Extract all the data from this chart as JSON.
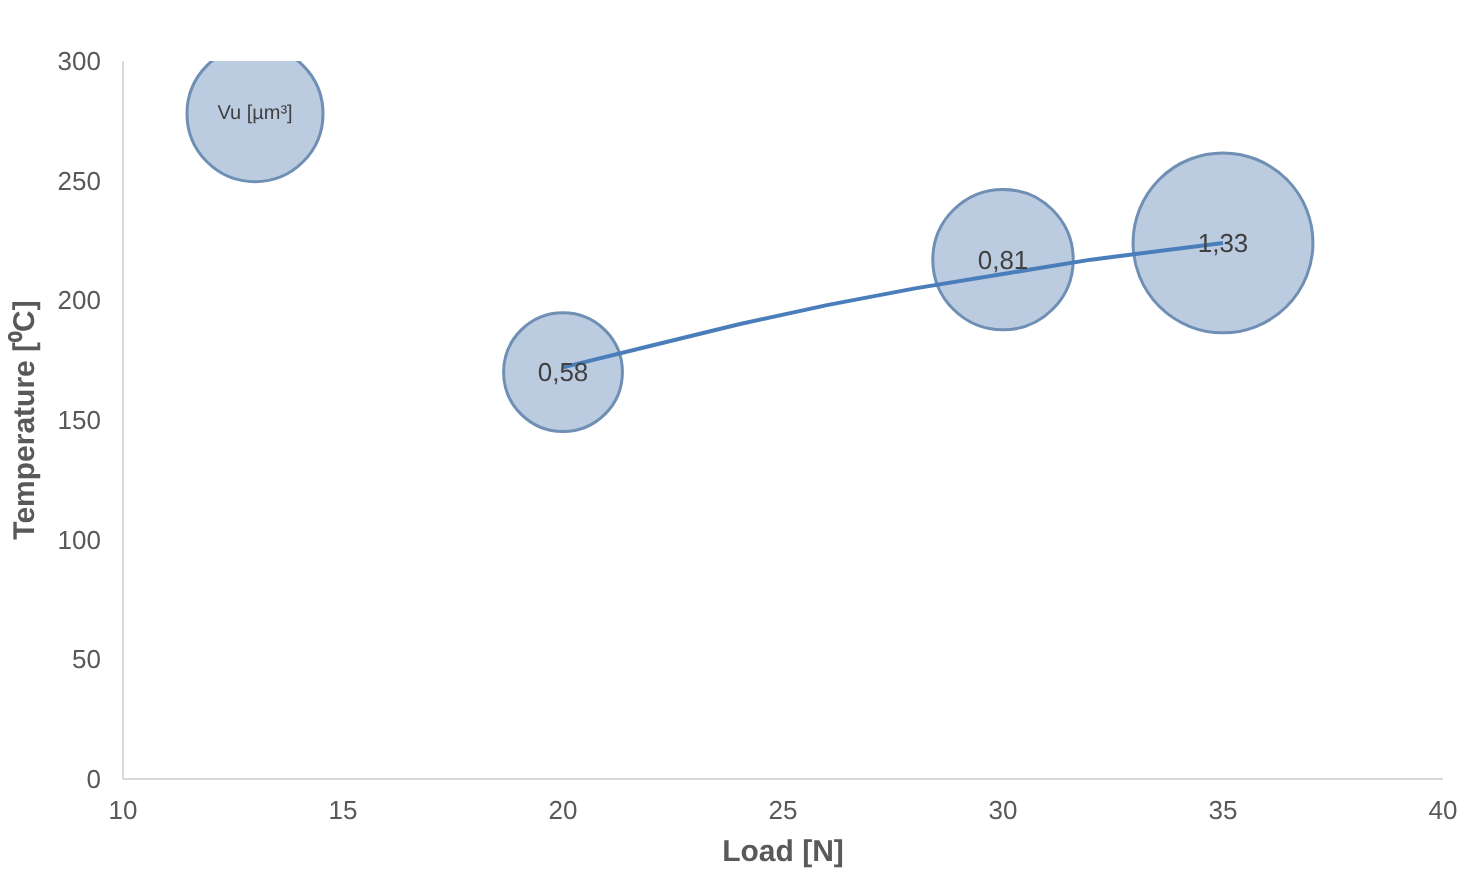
{
  "chart_data": {
    "type": "bubble",
    "xlabel": "Load [N]",
    "ylabel": "Temperature [⁰C]",
    "xlim": [
      10,
      40
    ],
    "xticks": [
      10,
      15,
      20,
      25,
      30,
      35,
      40
    ],
    "ylim": [
      0,
      300
    ],
    "yticks": [
      0,
      50,
      100,
      150,
      200,
      250,
      300
    ],
    "grid": false,
    "series": [
      {
        "color": "#b8c9de",
        "x": [
          20,
          30,
          35
        ],
        "values": [
          170,
          217,
          224
        ],
        "sizes": [
          0.58,
          0.81,
          1.33
        ],
        "value_labels": [
          "0,58",
          "0,81",
          "1,33"
        ]
      },
      {
        "type": "scatter",
        "name": "Vu [µm³]",
        "color": "#b8c9de",
        "marker": "circle",
        "x": [
          13
        ],
        "values": [
          278
        ]
      },
      {
        "type": "line",
        "color": "#4a7ebb",
        "x": [
          20,
          22,
          24,
          26,
          28,
          30,
          32,
          35
        ],
        "values": [
          172,
          181,
          190,
          198,
          205,
          211,
          217,
          224
        ]
      }
    ]
  }
}
